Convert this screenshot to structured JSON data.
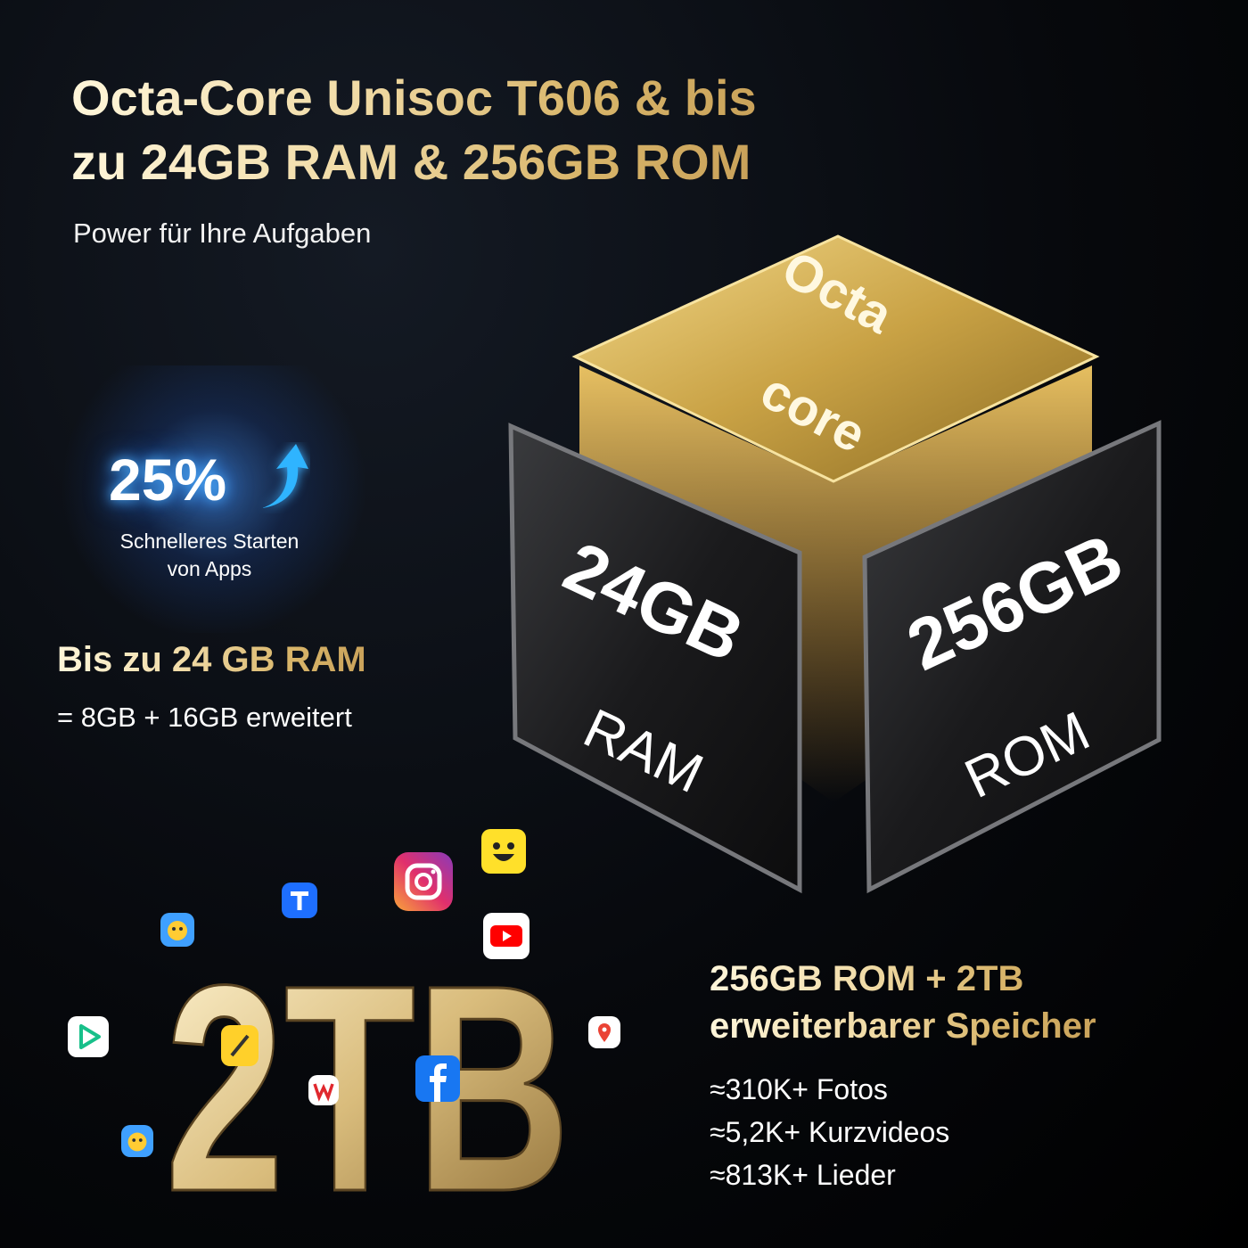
{
  "headline": {
    "line1": "Octa-Core Unisoc T606 & bis",
    "line2": "zu 24GB RAM & 256GB ROM",
    "subtitle": "Power für Ihre Aufgaben"
  },
  "speed_badge": {
    "value": "25%",
    "icon": "arrow-up-icon",
    "line1": "Schnelleres Starten",
    "line2": "von Apps"
  },
  "ram": {
    "heading": "Bis zu 24 GB RAM",
    "detail": "= 8GB + 16GB erweitert"
  },
  "cube": {
    "top_line1": "Octa",
    "top_line2": "core",
    "left_big": "24GB",
    "left_small": "RAM",
    "right_big": "256GB",
    "right_small": "ROM"
  },
  "storage": {
    "big_label": "2TB",
    "heading_line1": "256GB ROM + 2TB",
    "heading_line2": "erweiterbarer Speicher",
    "stats": [
      "≈310K+ Fotos",
      "≈5,2K+ Kurzvideos",
      "≈813K+ Lieder"
    ]
  },
  "app_icons": [
    "instagram-icon",
    "emoji-app-icon",
    "youtube-icon",
    "tencent-docs-icon",
    "game-app-icon",
    "video-player-icon",
    "notes-icon",
    "wps-icon",
    "facebook-icon",
    "maps-icon"
  ],
  "colors": {
    "gold": "#d8b56a",
    "background": "#05070a",
    "accent_blue": "#3fb0ff"
  }
}
